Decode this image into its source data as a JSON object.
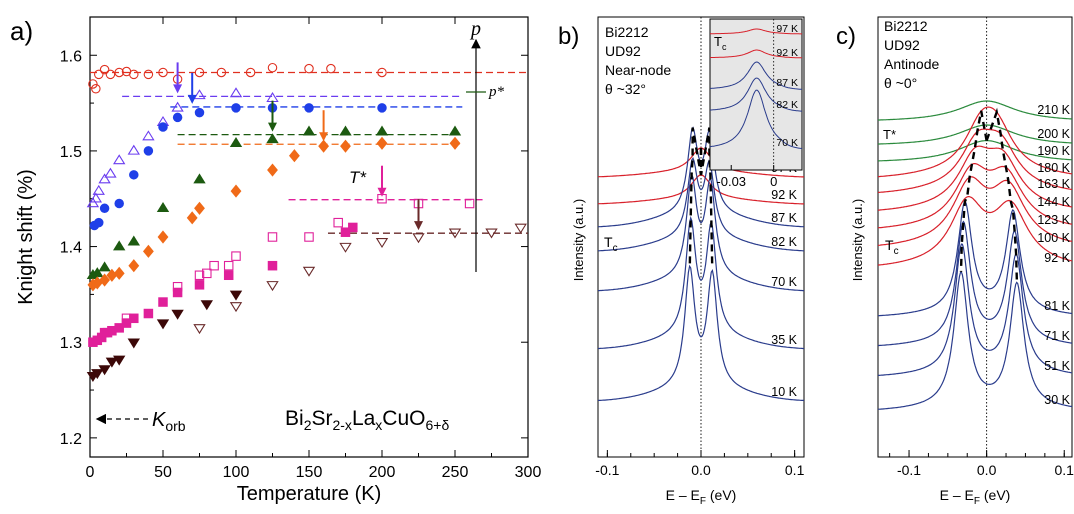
{
  "panel_labels": {
    "a": "a)",
    "b": "b)",
    "c": "c)"
  },
  "chart_data": [
    {
      "panel": "a",
      "type": "scatter",
      "xlabel": "Temperature (K)",
      "ylabel": "Knight shift (%)",
      "xlim": [
        0,
        300
      ],
      "ylim": [
        1.18,
        1.64
      ],
      "xticks": [
        "0",
        "50",
        "100",
        "150",
        "200",
        "250",
        "300"
      ],
      "yticks": [
        "1.2",
        "1.3",
        "1.4",
        "1.5",
        "1.6"
      ],
      "compound": {
        "base": "Bi",
        "s1": "2",
        "base2": "Sr",
        "s2": "2-x",
        "base3": "La",
        "s3": "x",
        "base4": "CuO",
        "s4": "6+δ"
      },
      "korb_label": {
        "prefix": "K",
        "sub": "orb"
      },
      "korb_value": 1.215,
      "doping_arrow_label": "p",
      "pstar_label": "p*",
      "tstar_label": "T*",
      "series": [
        {
          "color": "#e03020",
          "marker": "circle-open",
          "x": [
            2,
            4,
            6,
            10,
            14,
            20,
            25,
            30,
            40,
            50,
            60,
            75,
            90,
            110,
            125,
            150,
            165,
            200
          ],
          "y": [
            1.57,
            1.565,
            1.58,
            1.585,
            1.58,
            1.582,
            1.583,
            1.58,
            1.58,
            1.582,
            1.575,
            1.582,
            1.582,
            1.582,
            1.587,
            1.586,
            1.586,
            1.582
          ],
          "plateau": 1.582,
          "plateau_from": 0,
          "plateau_to": 300,
          "tstar": null
        },
        {
          "color": "#6a3cf0",
          "marker": "triangle-open",
          "x": [
            2,
            4,
            6,
            10,
            14,
            20,
            30,
            40,
            50,
            60,
            75,
            100,
            125
          ],
          "y": [
            1.445,
            1.45,
            1.458,
            1.47,
            1.476,
            1.49,
            1.5,
            1.515,
            1.53,
            1.545,
            1.558,
            1.56,
            1.555
          ],
          "plateau": 1.557,
          "plateau_from": 22,
          "plateau_to": 255,
          "tstar": 60
        },
        {
          "color": "#1f3fe8",
          "marker": "circle",
          "x": [
            3,
            6,
            10,
            20,
            30,
            40,
            50,
            60,
            75,
            100,
            125,
            150,
            200
          ],
          "y": [
            1.422,
            1.425,
            1.44,
            1.445,
            1.475,
            1.5,
            1.525,
            1.535,
            1.54,
            1.545,
            1.545,
            1.545,
            1.545
          ],
          "plateau": 1.546,
          "plateau_from": 55,
          "plateau_to": 255,
          "tstar": 70
        },
        {
          "color": "#1c5a10",
          "marker": "triangle",
          "x": [
            2,
            5,
            10,
            20,
            30,
            50,
            75,
            100,
            125,
            150,
            175,
            200,
            250
          ],
          "y": [
            1.37,
            1.372,
            1.378,
            1.4,
            1.405,
            1.44,
            1.47,
            1.508,
            1.512,
            1.52,
            1.52,
            1.52,
            1.52
          ],
          "plateau": 1.517,
          "plateau_from": 60,
          "plateau_to": 255,
          "tstar": 125
        },
        {
          "color": "#f06a18",
          "marker": "diamond",
          "x": [
            2,
            5,
            10,
            15,
            20,
            30,
            40,
            50,
            70,
            75,
            100,
            125,
            140,
            160,
            175,
            200,
            250
          ],
          "y": [
            1.36,
            1.362,
            1.365,
            1.37,
            1.372,
            1.38,
            1.395,
            1.41,
            1.43,
            1.44,
            1.458,
            1.48,
            1.495,
            1.505,
            1.505,
            1.508,
            1.508
          ],
          "plateau": 1.507,
          "plateau_from": 60,
          "plateau_to": 255,
          "tstar": 160
        },
        {
          "color": "#e0209a",
          "marker": "square",
          "x": [
            2,
            5,
            8,
            10,
            12,
            15,
            20,
            25,
            30,
            40,
            50,
            60,
            75,
            95,
            125,
            175,
            180
          ],
          "y": [
            1.3,
            1.302,
            1.305,
            1.31,
            1.31,
            1.312,
            1.315,
            1.32,
            1.325,
            1.33,
            1.342,
            1.352,
            1.36,
            1.37,
            1.38,
            1.415,
            1.42
          ],
          "plateau": null,
          "plateau_from": null,
          "plateau_to": null,
          "tstar": null
        },
        {
          "color": "#e0209a",
          "marker": "square-open",
          "x": [
            25,
            60,
            75,
            80,
            85,
            95,
            100,
            125,
            150,
            170,
            200,
            225,
            260
          ],
          "y": [
            1.325,
            1.358,
            1.37,
            1.372,
            1.38,
            1.38,
            1.39,
            1.41,
            1.41,
            1.425,
            1.45,
            1.445,
            1.445
          ],
          "plateau": 1.449,
          "plateau_from": 136,
          "plateau_to": 270,
          "tstar": 200
        },
        {
          "color": "#3c0808",
          "marker": "triangle-down",
          "x": [
            2,
            5,
            10,
            15,
            20,
            30,
            50,
            60,
            80,
            100
          ],
          "y": [
            1.265,
            1.268,
            1.272,
            1.28,
            1.282,
            1.3,
            1.32,
            1.33,
            1.34,
            1.35
          ],
          "plateau": null,
          "plateau_from": null,
          "plateau_to": null,
          "tstar": null
        },
        {
          "color": "#6a2a2a",
          "marker": "triangle-down-open",
          "x": [
            75,
            100,
            125,
            150,
            175,
            200,
            225,
            250,
            275,
            295
          ],
          "y": [
            1.315,
            1.338,
            1.36,
            1.375,
            1.4,
            1.405,
            1.41,
            1.415,
            1.415,
            1.42
          ],
          "plateau": 1.414,
          "plateau_from": 163,
          "plateau_to": 300,
          "tstar": 225
        }
      ]
    },
    {
      "panel": "b",
      "type": "line",
      "xlabel": {
        "pre": "E – E",
        "sub": "F",
        "post": " (eV)"
      },
      "ylabel": "Intensity (a.u.)",
      "xlim": [
        -0.11,
        0.11
      ],
      "xticks": [
        "-0.1",
        "0.0",
        "0.1"
      ],
      "title_lines": [
        "Bi2212",
        "UD92",
        "Near-node",
        "θ ~32°"
      ],
      "tc_label": {
        "main": "T",
        "sub": "c"
      },
      "temperatures": [
        "97 K",
        "92 K",
        "87 K",
        "82 K",
        "70 K",
        "35 K",
        "10 K"
      ],
      "above_tc_count": 2,
      "peak_positions": [
        0.0,
        0.0,
        -0.009,
        -0.009,
        -0.01,
        -0.011,
        -0.012
      ],
      "inset": {
        "xticks": [
          "-0.03",
          "0"
        ],
        "tc_label": {
          "main": "T",
          "sub": "c"
        },
        "temperatures": [
          "97 K",
          "92 K",
          "87 K",
          "82 K",
          "70 K"
        ]
      }
    },
    {
      "panel": "c",
      "type": "line",
      "xlabel": {
        "pre": "E – E",
        "sub": "F",
        "post": " (eV)"
      },
      "ylabel": "Intensity (a.u.)",
      "xlim": [
        -0.14,
        0.11
      ],
      "xticks": [
        "-0.1",
        "0.0",
        "0.1"
      ],
      "title_lines": [
        "Bi2212",
        "UD92",
        "Antinode",
        "θ ~0°"
      ],
      "tc_label": {
        "main": "T",
        "sub": "c"
      },
      "tstar_label": "T*",
      "temperatures": [
        "210 K",
        "200 K",
        "190 K",
        "180 K",
        "163 K",
        "144 K",
        "123 K",
        "100 K",
        "92 K",
        "81 K",
        "71 K",
        "51 K",
        "30 K"
      ],
      "above_tstar_count": 3,
      "above_tc_count": 9,
      "peak_positions": [
        0.0,
        0.0,
        0.0,
        -0.007,
        -0.012,
        -0.015,
        -0.019,
        -0.022,
        -0.025,
        -0.028,
        -0.03,
        -0.032,
        -0.033
      ]
    }
  ]
}
